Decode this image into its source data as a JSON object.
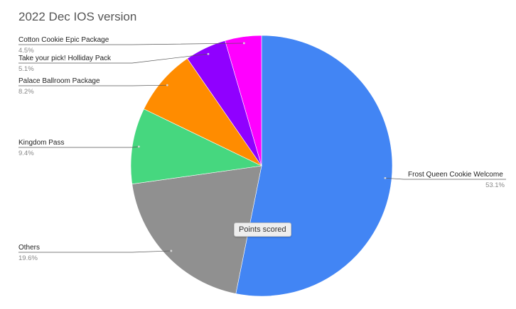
{
  "chart_data": {
    "type": "pie",
    "title": "2022 Dec IOS version",
    "slices": [
      {
        "label": "Frost Queen Cookie Welcome",
        "value": 53.1,
        "pct_label": "53.1%",
        "color": "#4285f4"
      },
      {
        "label": "Others",
        "value": 19.6,
        "pct_label": "19.6%",
        "color": "#909090"
      },
      {
        "label": "Kingdom Pass",
        "value": 9.4,
        "pct_label": "9.4%",
        "color": "#46d77f"
      },
      {
        "label": "Palace Ballroom Package",
        "value": 8.2,
        "pct_label": "8.2%",
        "color": "#ff8c00"
      },
      {
        "label": "Take your pick! Holliday Pack",
        "value": 5.1,
        "pct_label": "5.1%",
        "color": "#9000ff"
      },
      {
        "label": "Cotton Cookie Epic Package",
        "value": 4.5,
        "pct_label": "4.5%",
        "color": "#ff00ff"
      }
    ],
    "tooltip": "Points scored"
  }
}
